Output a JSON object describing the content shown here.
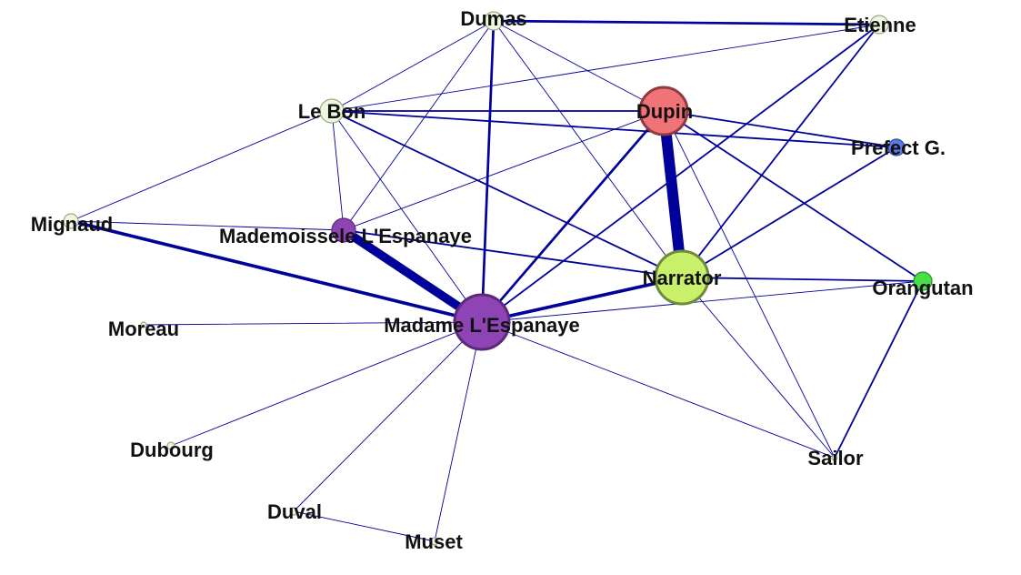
{
  "title": "",
  "edge_color": "#00009a",
  "nodes": [
    {
      "id": "dumas",
      "label": "Dumas",
      "fill": "#eef6dd",
      "stroke": "#9aa88a",
      "size": 1
    },
    {
      "id": "etienne",
      "label": "Etienne",
      "fill": "#eef6dd",
      "stroke": "#9aa88a",
      "size": 1
    },
    {
      "id": "lebon",
      "label": "Le Bon",
      "fill": "#eef6dd",
      "stroke": "#9aa88a",
      "size": 1.3
    },
    {
      "id": "dupin",
      "label": "Dupin",
      "fill": "#f07378",
      "stroke": "#8e3c40",
      "size": 2.6
    },
    {
      "id": "prefect",
      "label": "Prefect G.",
      "fill": "#5b78e8",
      "stroke": "#3548a0",
      "size": 0.9
    },
    {
      "id": "mignaud",
      "label": "Mignaud",
      "fill": "#eef6dd",
      "stroke": "#9aa88a",
      "size": 0.8
    },
    {
      "id": "mademoiselle",
      "label": "Mademoissele L'Espanaye",
      "fill": "#8e44b4",
      "stroke": "#5a2a78",
      "size": 1.3
    },
    {
      "id": "narrator",
      "label": "Narrator",
      "fill": "#c8f06a",
      "stroke": "#6e8a3c",
      "size": 2.9
    },
    {
      "id": "orangutan",
      "label": "Orangutan",
      "fill": "#48e048",
      "stroke": "#2a8a2a",
      "size": 1
    },
    {
      "id": "madame",
      "label": "Madame L'Espanaye",
      "fill": "#8e44b4",
      "stroke": "#5a2a78",
      "size": 3.0
    },
    {
      "id": "moreau",
      "label": "Moreau",
      "fill": "#eef6dd",
      "stroke": "#9aa88a",
      "size": 0.3
    },
    {
      "id": "dubourg",
      "label": "Dubourg",
      "fill": "#eef6dd",
      "stroke": "#9aa88a",
      "size": 0.4
    },
    {
      "id": "sailor",
      "label": "Sailor",
      "fill": "#eef6dd",
      "stroke": "#9aa88a",
      "size": 0.3
    },
    {
      "id": "duval",
      "label": "Duval",
      "fill": "#eef6dd",
      "stroke": "#9aa88a",
      "size": 0.4
    },
    {
      "id": "muset",
      "label": "Muset",
      "fill": "#eef6dd",
      "stroke": "#9aa88a",
      "size": 0.4
    }
  ],
  "edges": [
    {
      "source": "dumas",
      "target": "etienne",
      "weight": 3
    },
    {
      "source": "dumas",
      "target": "madame",
      "weight": 3
    },
    {
      "source": "dumas",
      "target": "lebon",
      "weight": 1
    },
    {
      "source": "dumas",
      "target": "dupin",
      "weight": 1
    },
    {
      "source": "dumas",
      "target": "narrator",
      "weight": 1
    },
    {
      "source": "dumas",
      "target": "mademoiselle",
      "weight": 1
    },
    {
      "source": "etienne",
      "target": "lebon",
      "weight": 1
    },
    {
      "source": "etienne",
      "target": "narrator",
      "weight": 2
    },
    {
      "source": "etienne",
      "target": "madame",
      "weight": 2
    },
    {
      "source": "lebon",
      "target": "dupin",
      "weight": 2
    },
    {
      "source": "lebon",
      "target": "prefect",
      "weight": 2
    },
    {
      "source": "lebon",
      "target": "narrator",
      "weight": 2
    },
    {
      "source": "lebon",
      "target": "mignaud",
      "weight": 1
    },
    {
      "source": "lebon",
      "target": "madame",
      "weight": 1
    },
    {
      "source": "lebon",
      "target": "mademoiselle",
      "weight": 1
    },
    {
      "source": "dupin",
      "target": "narrator",
      "weight": 10
    },
    {
      "source": "dupin",
      "target": "prefect",
      "weight": 2
    },
    {
      "source": "dupin",
      "target": "madame",
      "weight": 3
    },
    {
      "source": "dupin",
      "target": "orangutan",
      "weight": 2
    },
    {
      "source": "dupin",
      "target": "sailor",
      "weight": 1
    },
    {
      "source": "dupin",
      "target": "mademoiselle",
      "weight": 1
    },
    {
      "source": "prefect",
      "target": "narrator",
      "weight": 2
    },
    {
      "source": "mignaud",
      "target": "madame",
      "weight": 4
    },
    {
      "source": "mignaud",
      "target": "mademoiselle",
      "weight": 1
    },
    {
      "source": "mademoiselle",
      "target": "madame",
      "weight": 8
    },
    {
      "source": "mademoiselle",
      "target": "narrator",
      "weight": 2
    },
    {
      "source": "narrator",
      "target": "madame",
      "weight": 4
    },
    {
      "source": "narrator",
      "target": "orangutan",
      "weight": 2
    },
    {
      "source": "narrator",
      "target": "sailor",
      "weight": 1
    },
    {
      "source": "orangutan",
      "target": "sailor",
      "weight": 2
    },
    {
      "source": "orangutan",
      "target": "madame",
      "weight": 1
    },
    {
      "source": "madame",
      "target": "moreau",
      "weight": 1
    },
    {
      "source": "madame",
      "target": "dubourg",
      "weight": 1
    },
    {
      "source": "madame",
      "target": "duval",
      "weight": 1
    },
    {
      "source": "madame",
      "target": "muset",
      "weight": 1
    },
    {
      "source": "madame",
      "target": "sailor",
      "weight": 1
    },
    {
      "source": "duval",
      "target": "muset",
      "weight": 1
    }
  ]
}
